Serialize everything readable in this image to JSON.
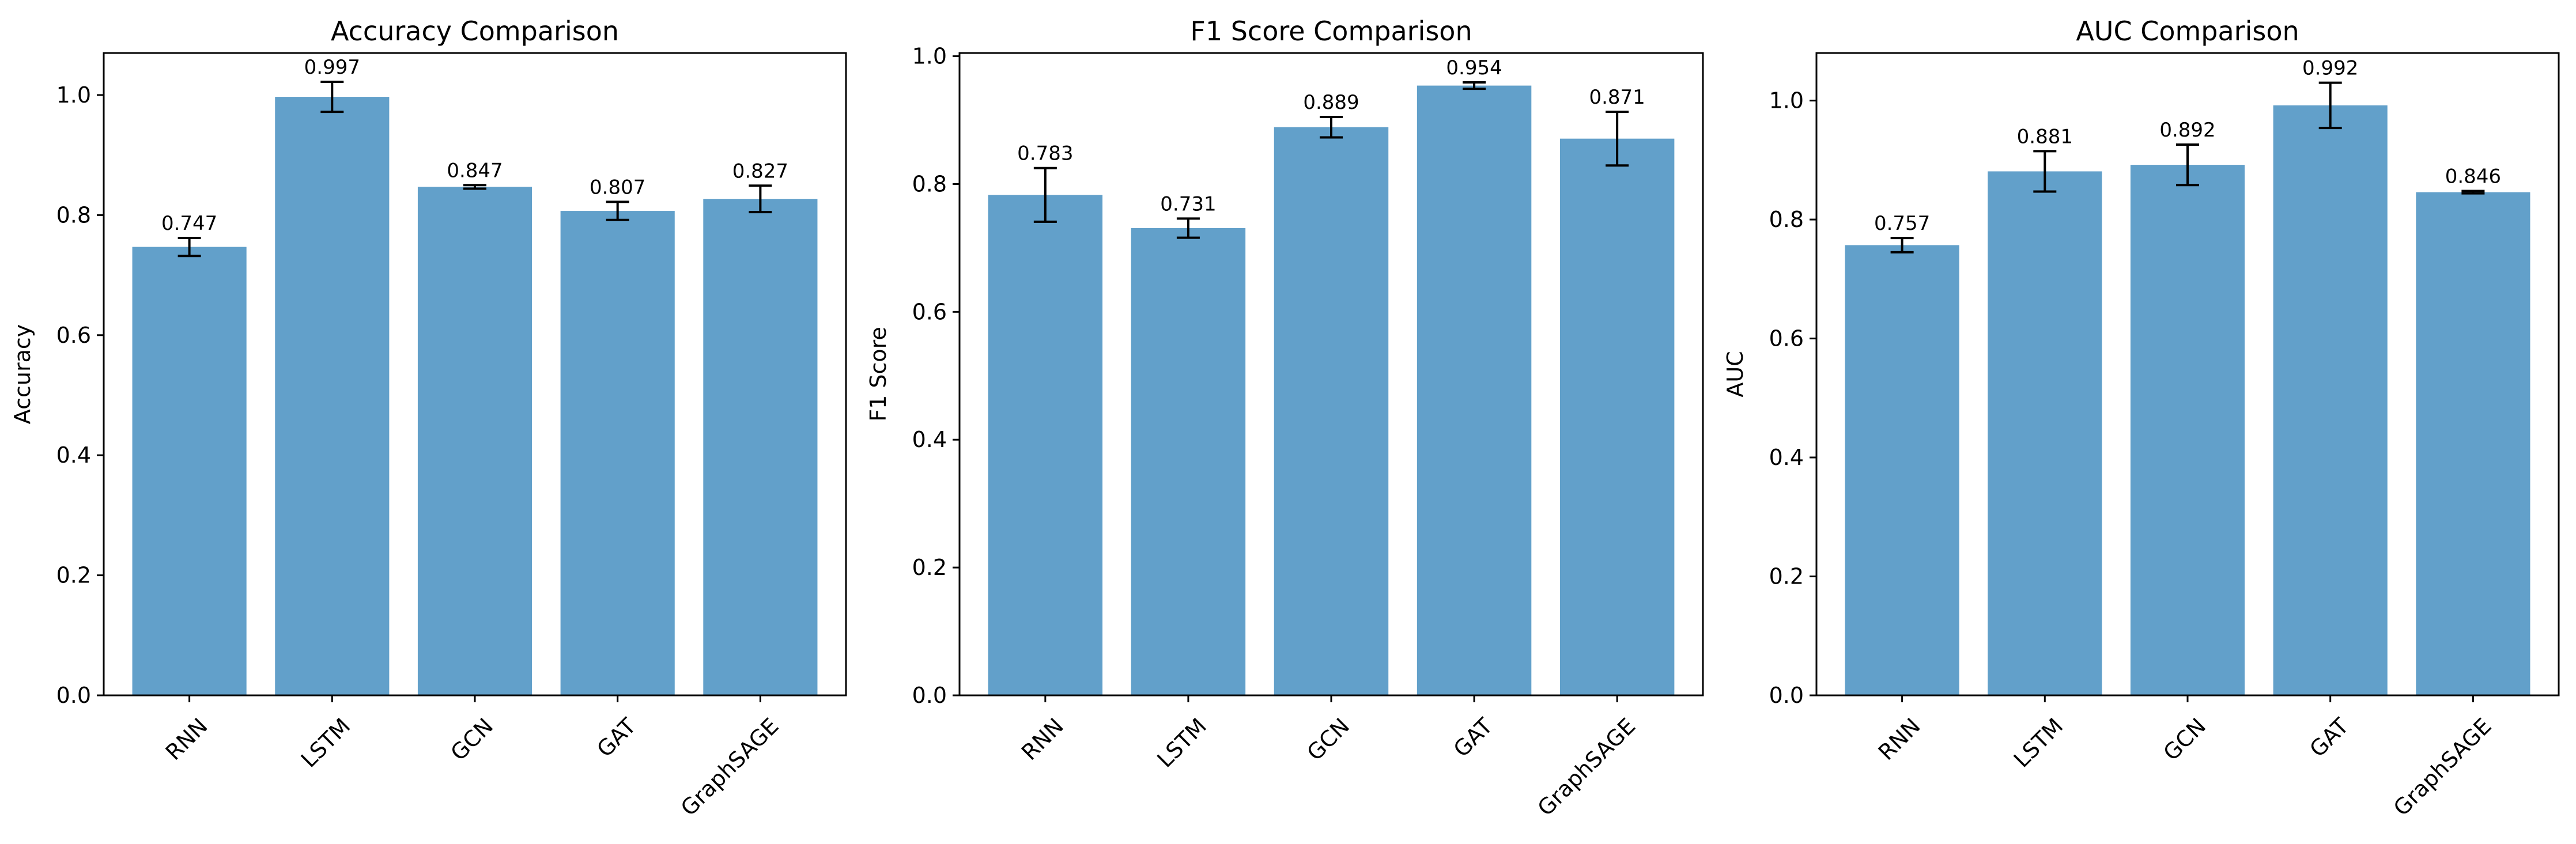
{
  "chart_data": [
    {
      "type": "bar",
      "title": "Accuracy Comparison",
      "xlabel": "",
      "ylabel": "Accuracy",
      "categories": [
        "RNN",
        "LSTM",
        "GCN",
        "GAT",
        "GraphSAGE"
      ],
      "values": [
        0.747,
        0.997,
        0.847,
        0.807,
        0.827
      ],
      "errors": [
        0.015,
        0.025,
        0.003,
        0.015,
        0.022
      ],
      "value_labels": [
        "0.747",
        "0.997",
        "0.847",
        "0.807",
        "0.827"
      ],
      "ylim": [
        0,
        1.07
      ],
      "yticks": [
        0.0,
        0.2,
        0.4,
        0.6,
        0.8,
        1.0
      ],
      "ytick_labels": [
        "0.0",
        "0.2",
        "0.4",
        "0.6",
        "0.8",
        "1.0"
      ],
      "grid": false,
      "legend": "none",
      "bar_color": "#62a0ca"
    },
    {
      "type": "bar",
      "title": "F1 Score Comparison",
      "xlabel": "",
      "ylabel": "F1 Score",
      "categories": [
        "RNN",
        "LSTM",
        "GCN",
        "GAT",
        "GraphSAGE"
      ],
      "values": [
        0.783,
        0.731,
        0.889,
        0.954,
        0.871
      ],
      "errors": [
        0.042,
        0.015,
        0.016,
        0.005,
        0.042
      ],
      "value_labels": [
        "0.783",
        "0.731",
        "0.889",
        "0.954",
        "0.871"
      ],
      "ylim": [
        0,
        1.005
      ],
      "yticks": [
        0.0,
        0.2,
        0.4,
        0.6,
        0.8,
        1.0
      ],
      "ytick_labels": [
        "0.0",
        "0.2",
        "0.4",
        "0.6",
        "0.8",
        "1.0"
      ],
      "grid": false,
      "legend": "none",
      "bar_color": "#62a0ca"
    },
    {
      "type": "bar",
      "title": "AUC Comparison",
      "xlabel": "",
      "ylabel": "AUC",
      "categories": [
        "RNN",
        "LSTM",
        "GCN",
        "GAT",
        "GraphSAGE"
      ],
      "values": [
        0.757,
        0.881,
        0.892,
        0.992,
        0.846
      ],
      "errors": [
        0.012,
        0.034,
        0.034,
        0.038,
        0.002
      ],
      "value_labels": [
        "0.757",
        "0.881",
        "0.892",
        "0.992",
        "0.846"
      ],
      "ylim": [
        0,
        1.08
      ],
      "yticks": [
        0.0,
        0.2,
        0.4,
        0.6,
        0.8,
        1.0
      ],
      "ytick_labels": [
        "0.0",
        "0.2",
        "0.4",
        "0.6",
        "0.8",
        "1.0"
      ],
      "grid": false,
      "legend": "none",
      "bar_color": "#62a0ca"
    }
  ]
}
